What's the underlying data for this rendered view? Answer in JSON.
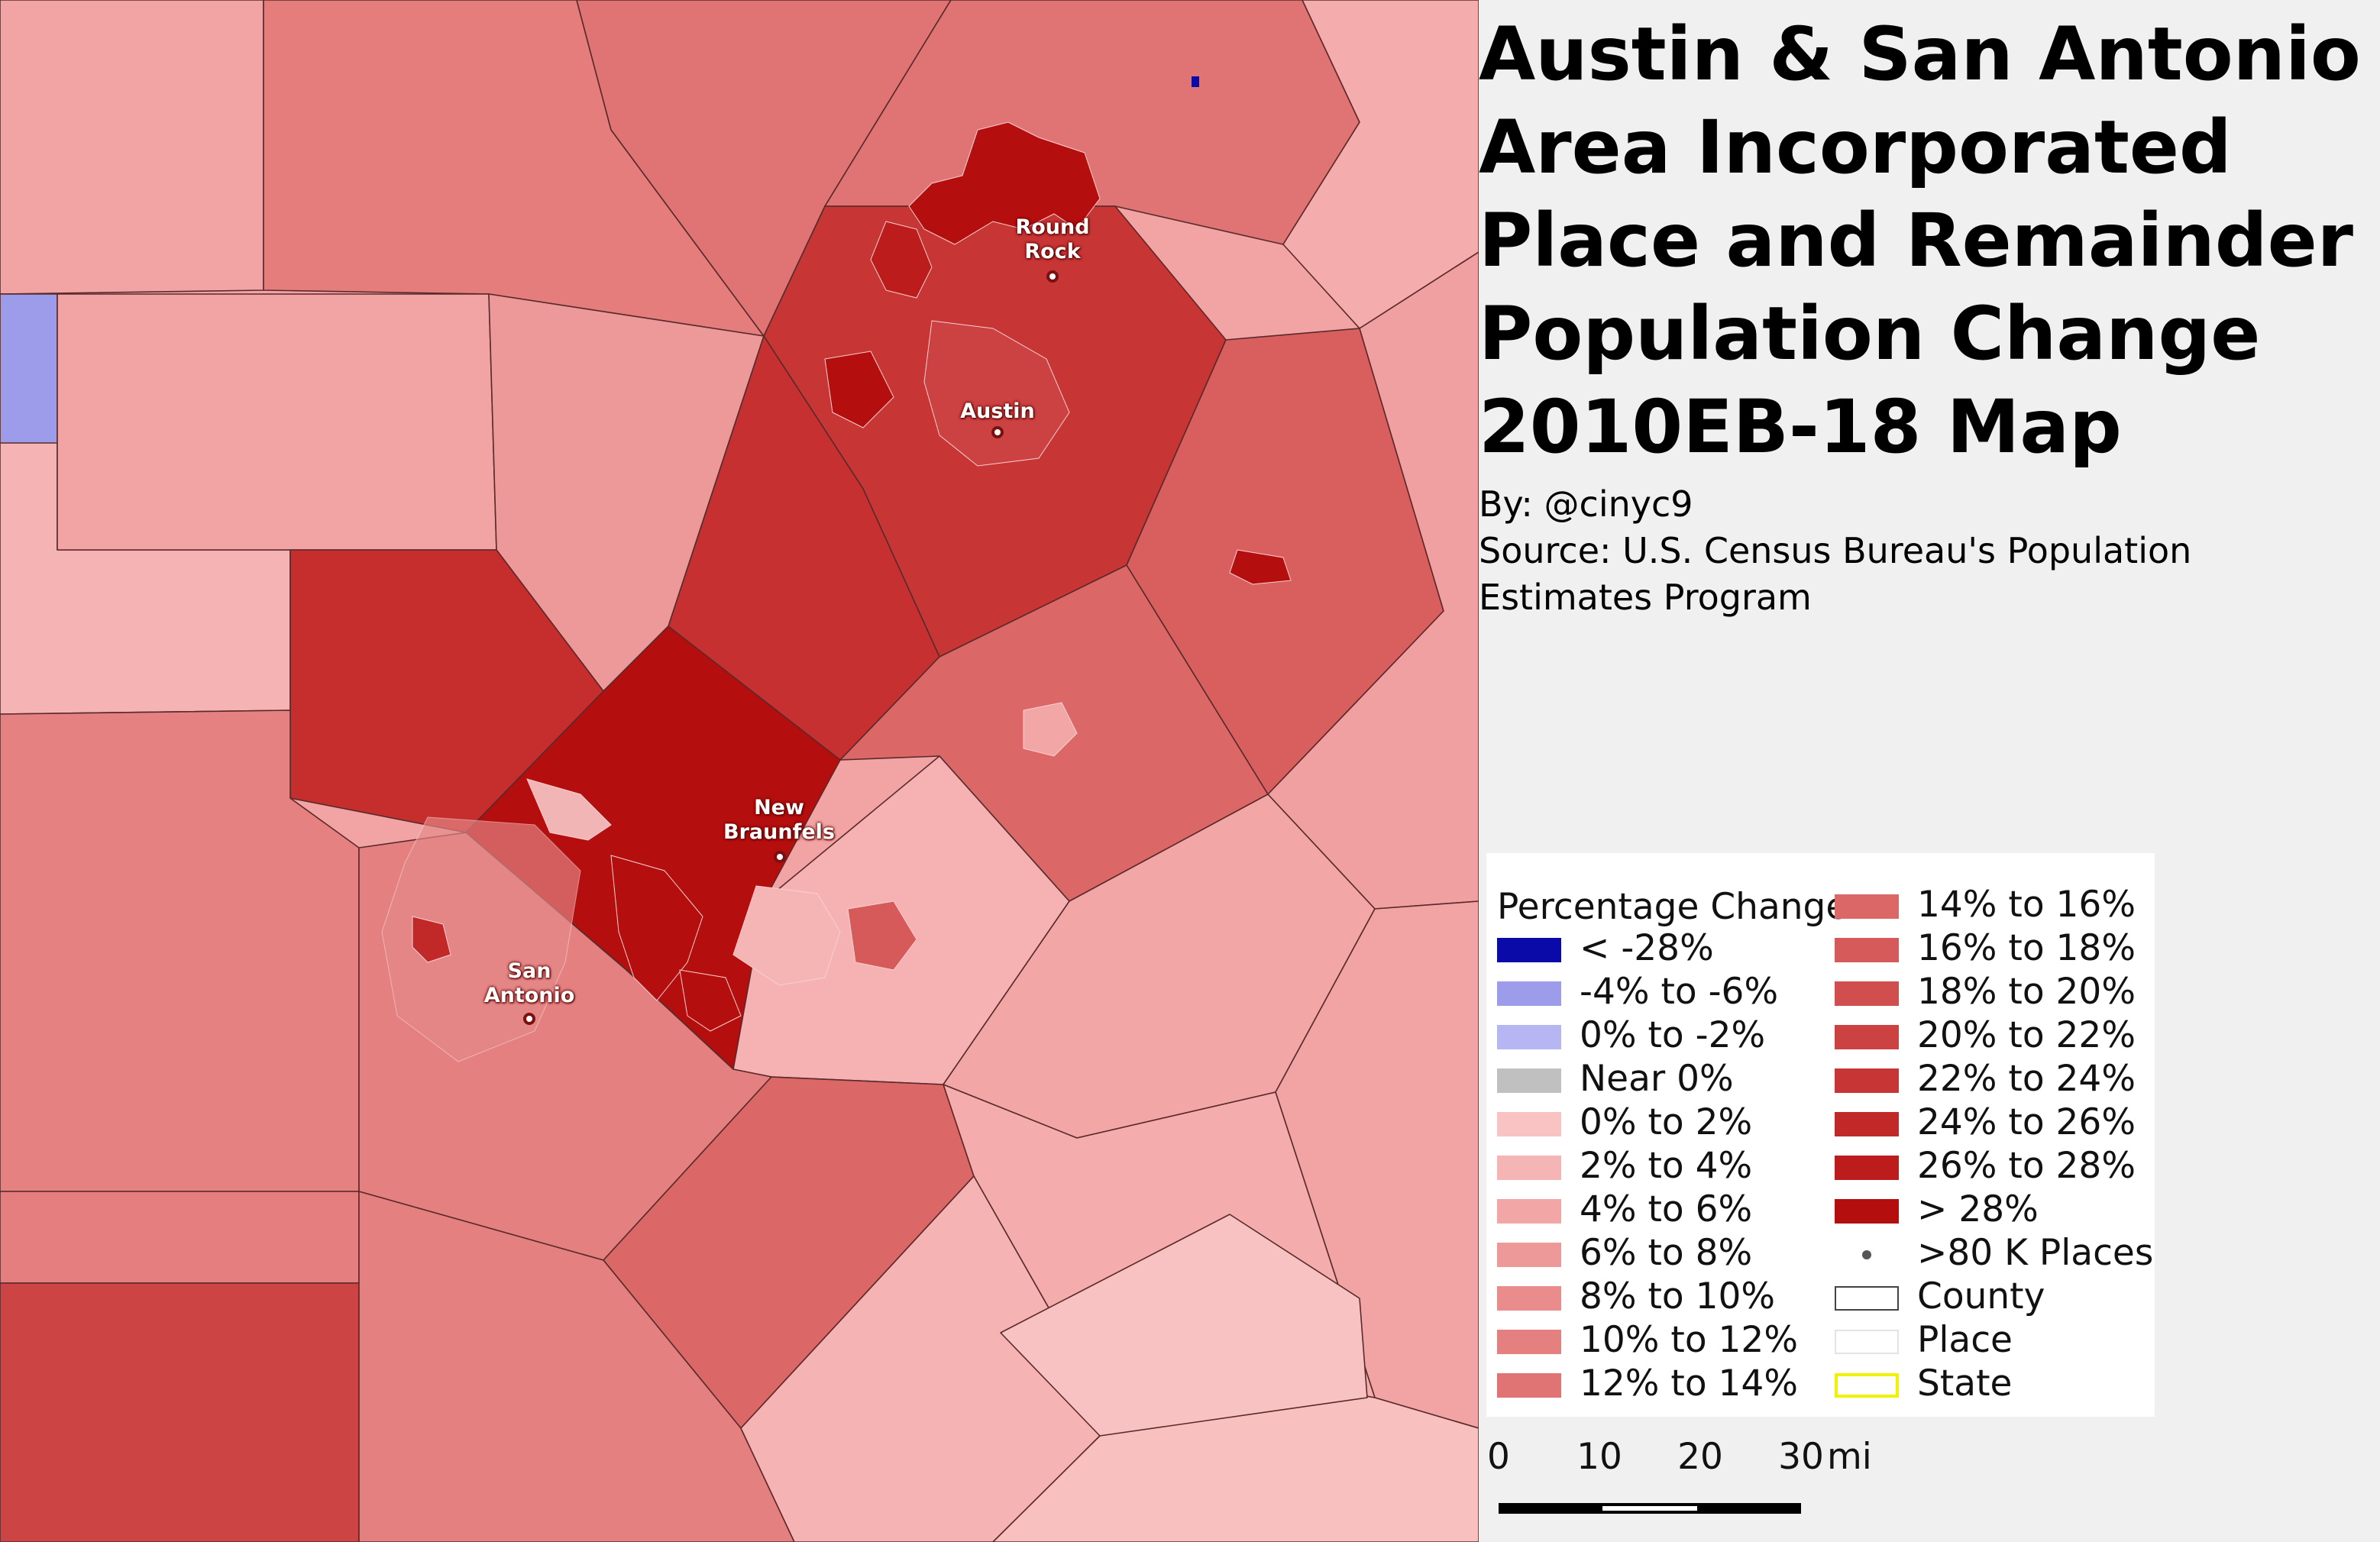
{
  "title": "Austin & San Antonio Area Incorporated Place and Remainder Population Change 2010EB-18 Map",
  "byline": "By: @cinyc9",
  "source": "Source: U.S. Census Bureau's Population Estimates Program",
  "cities": [
    {
      "name_line1": "Round",
      "name_line2": "Rock"
    },
    {
      "name_line1": "Austin",
      "name_line2": ""
    },
    {
      "name_line1": "New",
      "name_line2": "Braunfels"
    },
    {
      "name_line1": "San",
      "name_line2": "Antonio"
    }
  ],
  "legend": {
    "title": "Percentage Change",
    "left_items": [
      {
        "label": "< -28%",
        "color": "#0a0aa8"
      },
      {
        "label": "-4% to -6%",
        "color": "#9c9cea"
      },
      {
        "label": "0% to -2%",
        "color": "#b6b6f2"
      },
      {
        "label": "Near 0%",
        "color": "#c0c0c0"
      },
      {
        "label": "0% to 2%",
        "color": "#f9c3c3"
      },
      {
        "label": "2% to 4%",
        "color": "#f6b5b5"
      },
      {
        "label": "4% to 6%",
        "color": "#f2a6a6"
      },
      {
        "label": "6% to 8%",
        "color": "#ee9999"
      },
      {
        "label": "8% to 10%",
        "color": "#ea8c8c"
      },
      {
        "label": "10% to 12%",
        "color": "#e58080"
      },
      {
        "label": "12% to 14%",
        "color": "#e07474"
      }
    ],
    "right_items": [
      {
        "label": "14% to 16%",
        "color": "#db6767"
      },
      {
        "label": "16% to 18%",
        "color": "#d65a5a"
      },
      {
        "label": "18% to 20%",
        "color": "#d14e4e"
      },
      {
        "label": "20% to 22%",
        "color": "#cc4141"
      },
      {
        "label": "22% to 24%",
        "color": "#c73535"
      },
      {
        "label": "24% to 26%",
        "color": "#c12828"
      },
      {
        "label": "26% to 28%",
        "color": "#bc1c1c"
      },
      {
        "label": "> 28%",
        "color": "#b50e0e"
      },
      {
        "label": ">80 K Places",
        "symbol": "dot"
      },
      {
        "label": "County",
        "symbol": "county-outline"
      },
      {
        "label": "Place",
        "symbol": "place-outline"
      },
      {
        "label": "State",
        "symbol": "state-outline"
      }
    ]
  },
  "scale": {
    "ticks": [
      "0",
      "10",
      "20",
      "30"
    ],
    "unit": "mi"
  }
}
